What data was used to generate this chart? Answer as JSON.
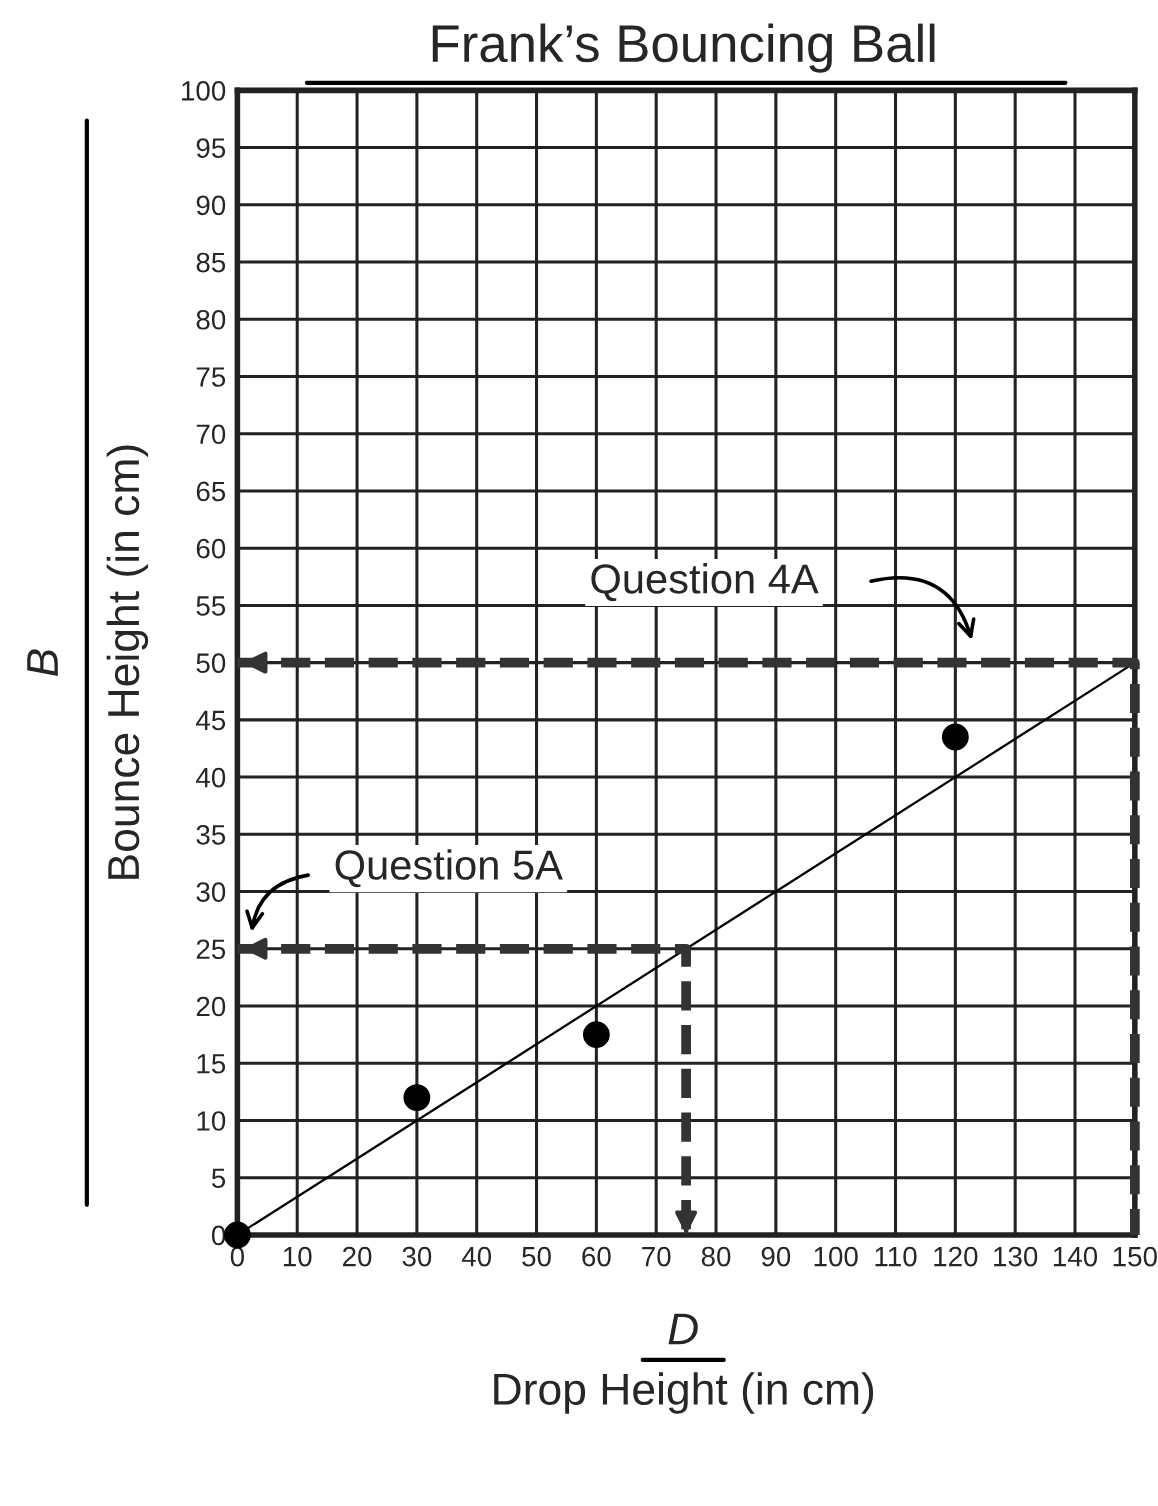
{
  "chart_data": {
    "type": "scatter",
    "title": "Frank’s Bouncing Ball",
    "xlabel": "D\nDrop Height (in cm)",
    "ylabel": "B\nBounce Height (in cm)",
    "xlim": [
      0,
      150
    ],
    "ylim": [
      0,
      100
    ],
    "xticks": [
      0,
      10,
      20,
      30,
      40,
      50,
      60,
      70,
      80,
      90,
      100,
      110,
      120,
      130,
      140,
      150
    ],
    "yticks": [
      0,
      5,
      10,
      15,
      20,
      25,
      30,
      35,
      40,
      45,
      50,
      55,
      60,
      65,
      70,
      75,
      80,
      85,
      90,
      95,
      100
    ],
    "grid": true,
    "series": [
      {
        "color": "#000000",
        "marker": "circle",
        "x": [
          0,
          30,
          60,
          120
        ],
        "values": [
          0,
          12,
          17.5,
          43.5
        ]
      },
      {
        "type": "line",
        "color": "#000000",
        "line_style": "solid",
        "x": [
          0,
          150
        ],
        "values": [
          0,
          50
        ]
      },
      {
        "type": "line",
        "color": "#333333",
        "line_style": "dashed",
        "x": [
          0,
          150,
          150
        ],
        "values": [
          50,
          50,
          0
        ]
      },
      {
        "type": "line",
        "color": "#333333",
        "line_style": "dashed",
        "x": [
          0,
          75,
          75
        ],
        "values": [
          25,
          25,
          0
        ]
      }
    ],
    "annotations": [
      "Question 4A",
      "Question 5A"
    ]
  }
}
